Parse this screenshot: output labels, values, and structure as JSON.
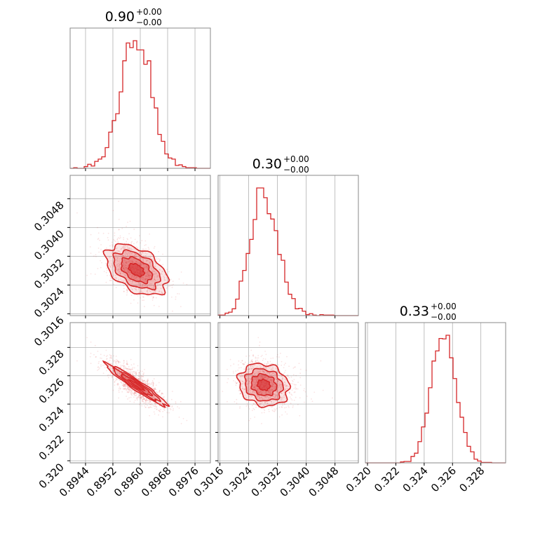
{
  "chart_data": {
    "type": "corner",
    "color": "#d62728",
    "grid": true,
    "titles": [
      {
        "value": "0.90",
        "upper": "+0.00",
        "lower": "−0.00"
      },
      {
        "value": "0.30",
        "upper": "+0.00",
        "lower": "−0.00"
      },
      {
        "value": "0.33",
        "upper": "+0.00",
        "lower": "−0.00"
      }
    ],
    "parameters": [
      {
        "range": [
          0.89395,
          0.89805
        ],
        "ticks": [
          0.8944,
          0.8952,
          0.896,
          0.8968,
          0.8976
        ],
        "tick_labels": [
          "0.8944",
          "0.8952",
          "0.8960",
          "0.8968",
          "0.8976"
        ],
        "mean": 0.89589,
        "sd": 0.00045
      },
      {
        "range": [
          0.30155,
          0.30545
        ],
        "ticks": [
          0.3016,
          0.3024,
          0.3032,
          0.304,
          0.3048
        ],
        "tick_labels": [
          "0.3016",
          "0.3024",
          "0.3032",
          "0.3040",
          "0.3048"
        ],
        "mean": 0.30282,
        "sd": 0.00035
      },
      {
        "range": [
          0.31985,
          0.32975
        ],
        "ticks": [
          0.32,
          0.322,
          0.324,
          0.326,
          0.328
        ],
        "tick_labels": [
          "0.320",
          "0.322",
          "0.324",
          "0.326",
          "0.328"
        ],
        "mean": 0.32535,
        "sd": 0.00075
      }
    ],
    "histograms": [
      {
        "bins": 40,
        "peak_x": 0.8959
      },
      {
        "bins": 40,
        "peak_x": 0.3027
      },
      {
        "bins": 40,
        "peak_x": 0.3254
      }
    ],
    "pairs": [
      {
        "x": 0,
        "y": 1,
        "correlation": -0.45
      },
      {
        "x": 0,
        "y": 2,
        "correlation": -0.96
      },
      {
        "x": 1,
        "y": 2,
        "correlation": -0.15
      }
    ]
  }
}
